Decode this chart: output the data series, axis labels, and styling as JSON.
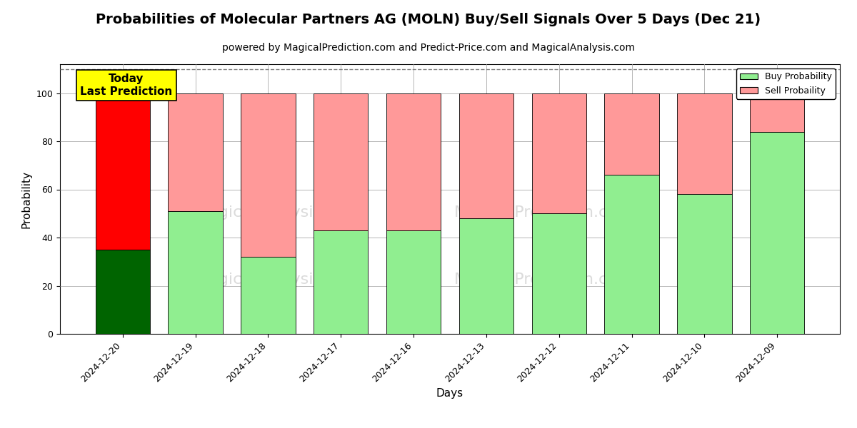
{
  "title": "Probabilities of Molecular Partners AG (MOLN) Buy/Sell Signals Over 5 Days (Dec 21)",
  "subtitle": "powered by MagicalPrediction.com and Predict-Price.com and MagicalAnalysis.com",
  "xlabel": "Days",
  "ylabel": "Probability",
  "categories": [
    "2024-12-20",
    "2024-12-19",
    "2024-12-18",
    "2024-12-17",
    "2024-12-16",
    "2024-12-13",
    "2024-12-12",
    "2024-12-11",
    "2024-12-10",
    "2024-12-09"
  ],
  "buy_values": [
    35,
    51,
    32,
    43,
    43,
    48,
    50,
    66,
    58,
    84
  ],
  "sell_values": [
    65,
    49,
    68,
    57,
    57,
    52,
    50,
    34,
    42,
    16
  ],
  "buy_colors": [
    "#006400",
    "#90EE90",
    "#90EE90",
    "#90EE90",
    "#90EE90",
    "#90EE90",
    "#90EE90",
    "#90EE90",
    "#90EE90",
    "#90EE90"
  ],
  "sell_colors": [
    "#FF0000",
    "#FF9999",
    "#FF9999",
    "#FF9999",
    "#FF9999",
    "#FF9999",
    "#FF9999",
    "#FF9999",
    "#FF9999",
    "#FF9999"
  ],
  "today_label": "Today\nLast Prediction",
  "today_box_color": "#FFFF00",
  "legend_buy_color": "#90EE90",
  "legend_sell_color": "#FF9999",
  "legend_buy_label": "Buy Probability",
  "legend_sell_label": "Sell Probaility",
  "ylim": [
    0,
    112
  ],
  "yticks": [
    0,
    20,
    40,
    60,
    80,
    100
  ],
  "dashed_line_y": 110,
  "background_color": "#ffffff",
  "plot_bg_color": "#ffffff",
  "grid_color": "#aaaaaa",
  "title_fontsize": 14,
  "subtitle_fontsize": 10,
  "axis_label_fontsize": 11,
  "tick_fontsize": 9,
  "bar_width": 0.75
}
